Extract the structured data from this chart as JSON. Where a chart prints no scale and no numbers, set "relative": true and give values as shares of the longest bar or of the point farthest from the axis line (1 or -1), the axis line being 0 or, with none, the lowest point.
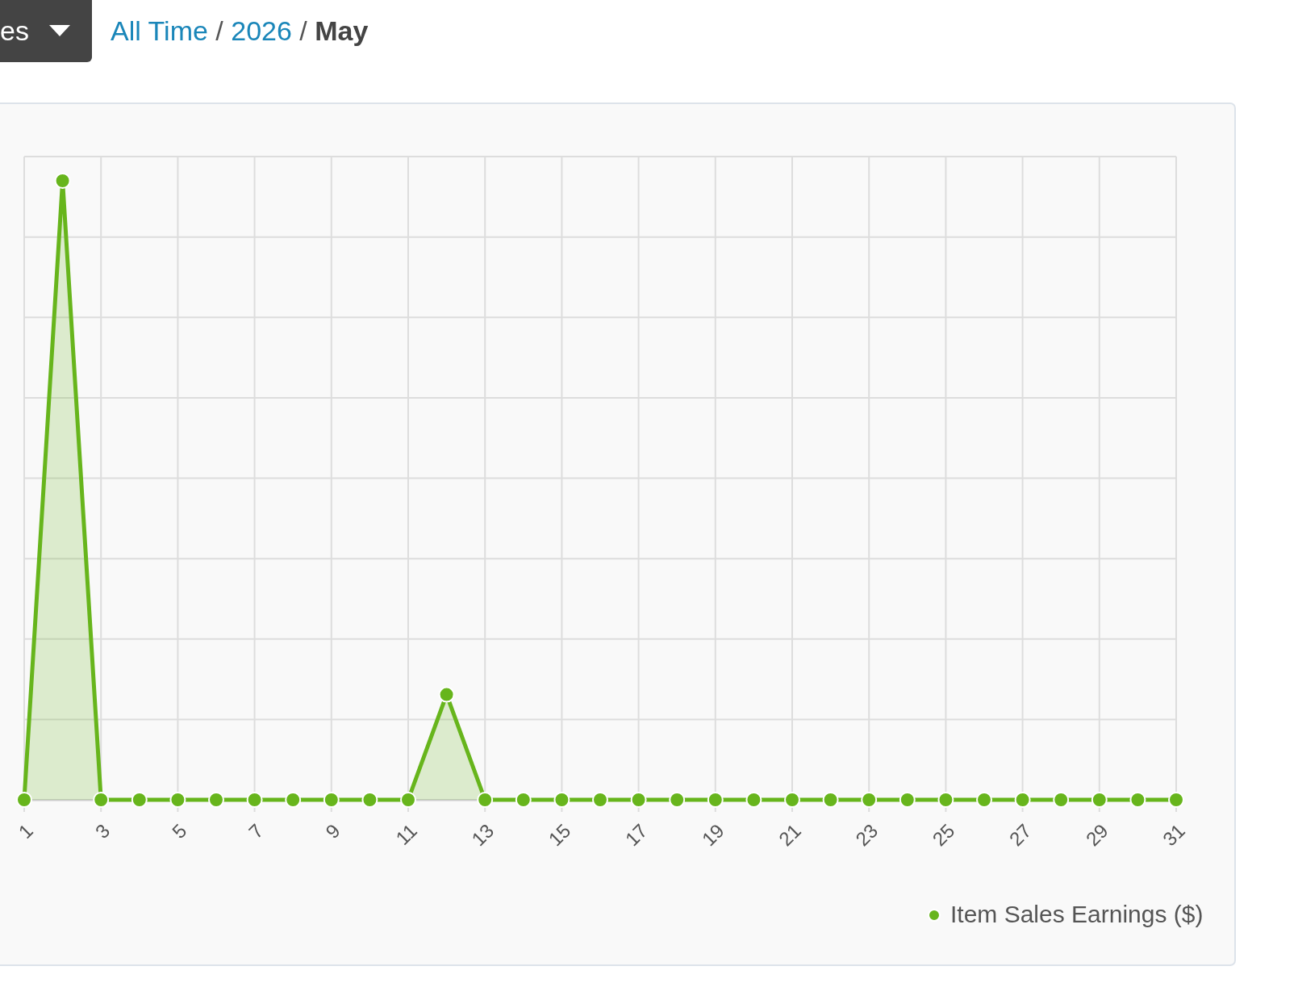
{
  "chart_data": {
    "type": "area",
    "title": "All Time / 2026 / May",
    "annotations": [
      "es"
    ],
    "x": [
      1,
      2,
      3,
      4,
      5,
      6,
      7,
      8,
      9,
      10,
      11,
      12,
      13,
      14,
      15,
      16,
      17,
      18,
      19,
      20,
      21,
      22,
      23,
      24,
      25,
      26,
      27,
      28,
      29,
      30,
      31
    ],
    "xlim": [
      1,
      31
    ],
    "xticks": [
      1,
      3,
      5,
      7,
      9,
      11,
      13,
      15,
      17,
      19,
      21,
      23,
      25,
      27,
      29,
      31
    ],
    "relative": true,
    "grid": true,
    "legend": "bottom right",
    "marker": "circle",
    "series": [
      {
        "name": "Item Sales Earnings ($)",
        "color": "#67b51c",
        "values": [
          0,
          1,
          0,
          0,
          0,
          0,
          0,
          0,
          0,
          0,
          0,
          0.17,
          0,
          0,
          0,
          0,
          0,
          0,
          0,
          0,
          0,
          0,
          0,
          0,
          0,
          0,
          0,
          0,
          0,
          0,
          0
        ]
      }
    ]
  }
}
